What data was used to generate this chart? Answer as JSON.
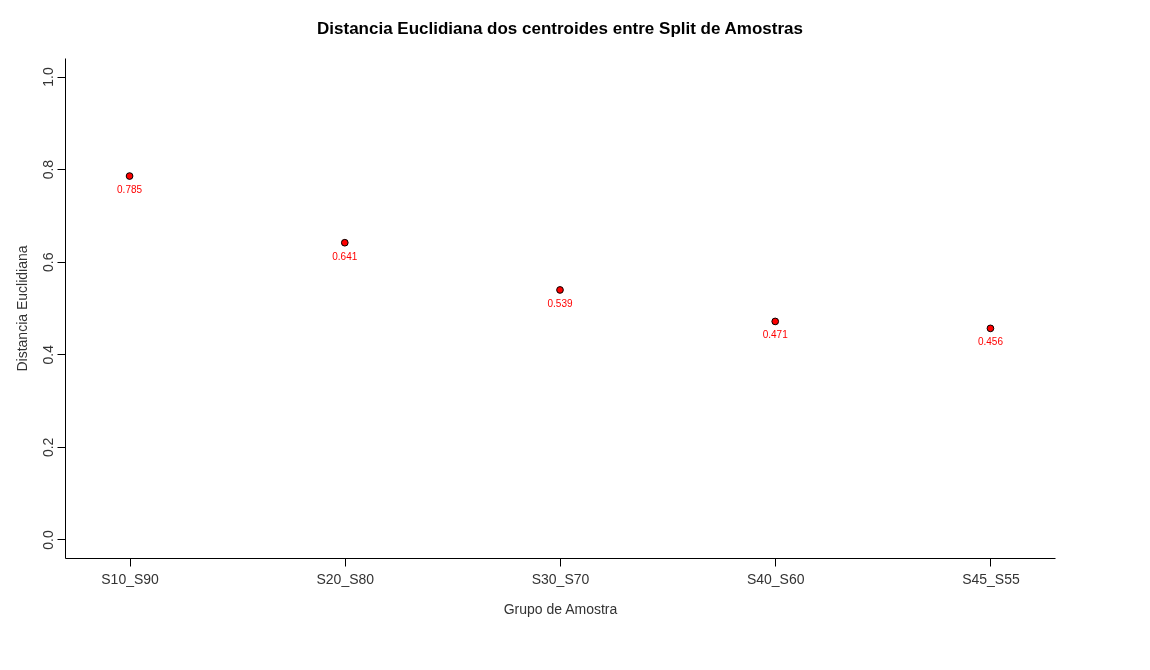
{
  "chart_data": {
    "type": "scatter",
    "title": "Distancia Euclidiana dos centroides entre Split de Amostras",
    "xlabel": "Grupo de Amostra",
    "ylabel": "Distancia Euclidiana",
    "categories": [
      "S10_S90",
      "S20_S80",
      "S30_S70",
      "S40_S60",
      "S45_S55"
    ],
    "series": [
      {
        "color": "#ff0000",
        "values": [
          0.785,
          0.641,
          0.539,
          0.471,
          0.456
        ]
      }
    ],
    "ylim": [
      -0.04,
      1.04
    ],
    "yticks": [
      {
        "value": 0,
        "label": "0.0"
      },
      {
        "value": 0.2,
        "label": "0.2"
      },
      {
        "value": 0.4,
        "label": "0.4"
      },
      {
        "value": 0.6,
        "label": "0.6"
      },
      {
        "value": 0.8,
        "label": "0.8"
      },
      {
        "value": 1,
        "label": "1.0"
      }
    ],
    "data_labels": true,
    "grid": false,
    "marker": "circle"
  }
}
